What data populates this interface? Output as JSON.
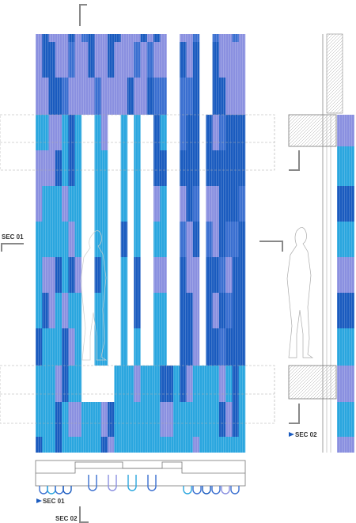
{
  "labels": {
    "left_section": "SEC 01",
    "right_section": "SEC 02",
    "plan_section_1": "SEC 01",
    "plan_section_2": "SEC 02"
  }
}
